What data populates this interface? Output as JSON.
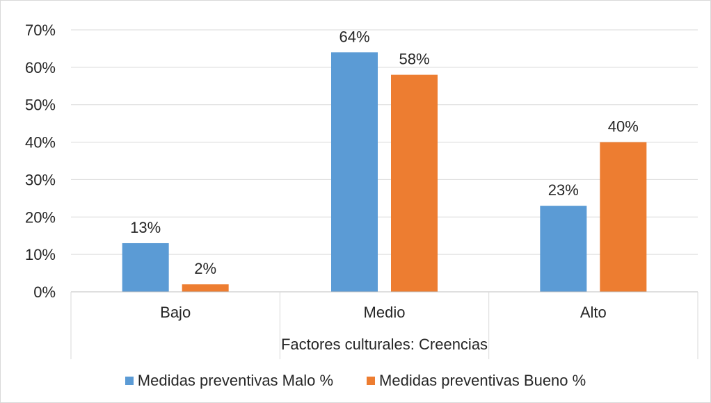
{
  "chart_data": {
    "type": "bar",
    "categories": [
      "Bajo",
      "Medio",
      "Alto"
    ],
    "series": [
      {
        "name": "Medidas preventivas Malo %",
        "values": [
          13,
          64,
          23
        ],
        "labels": [
          "13%",
          "64%",
          "23%"
        ],
        "color": "#5b9bd5"
      },
      {
        "name": "Medidas preventivas Bueno %",
        "values": [
          2,
          58,
          40
        ],
        "labels": [
          "2%",
          "58%",
          "40%"
        ],
        "color": "#ed7d31"
      }
    ],
    "title": "",
    "xlabel": "Factores culturales: Creencias",
    "ylabel": "",
    "ylim": [
      0,
      70
    ],
    "yticks": [
      "0%",
      "10%",
      "20%",
      "30%",
      "40%",
      "50%",
      "60%",
      "70%"
    ],
    "grid": true,
    "legend": "bottom"
  }
}
